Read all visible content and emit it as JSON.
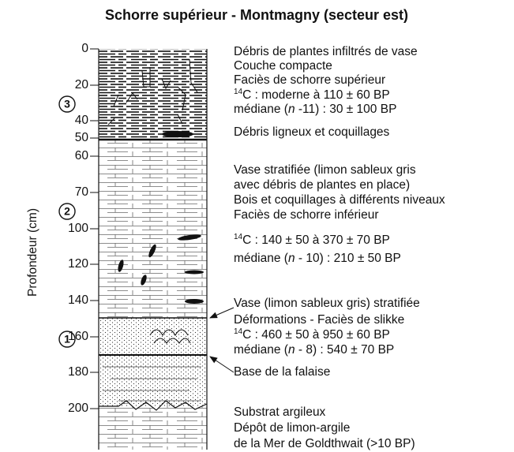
{
  "title": "Schorre supérieur - Montmagny (secteur est)",
  "y_axis_label": "Profondeur (cm)",
  "ticks": [
    0,
    20,
    40,
    50,
    60,
    70,
    100,
    120,
    140,
    160,
    180,
    200
  ],
  "units": [
    "3",
    "2",
    "1"
  ],
  "descriptions": [
    {
      "lines": [
        [
          "Débris de plantes infiltrés de vase"
        ],
        [
          "Couche compacte"
        ],
        [
          "Faciès de schorre supérieur"
        ],
        [
          {
            "sup": "14"
          },
          "C : moderne à 110 ± 60 BP"
        ],
        [
          "médiane (",
          {
            "i": "n"
          },
          " -11) : 30 ± 100 BP"
        ],
        [
          "Débris ligneux et coquillages"
        ]
      ]
    },
    {
      "lines": [
        [
          "Vase stratifiée (limon sableux gris"
        ],
        [
          "avec débris de plantes en place)"
        ],
        [
          "Bois et coquillages à différents niveaux"
        ],
        [
          "Faciès de schorre inférieur"
        ],
        [
          {
            "sup": "14"
          },
          "C : 140 ± 50 à 370 ± 70 BP"
        ],
        [
          "médiane (",
          {
            "i": "n"
          },
          " - 10) : 210 ± 50 BP"
        ]
      ]
    },
    {
      "lines": [
        [
          "Vase (limon sableux gris) stratifiée"
        ],
        [
          "Déformations - Faciès de slikke"
        ],
        [
          {
            "sup": "14"
          },
          "C : 460 ± 50 à 950 ± 60 BP"
        ],
        [
          "médiane (",
          {
            "i": "n"
          },
          " - 8) : 540 ± 70 BP"
        ],
        [
          "Base de la falaise"
        ]
      ]
    },
    {
      "lines": [
        [
          "Substrat argileux"
        ],
        [
          "Dépôt de limon-argile"
        ],
        [
          "de la Mer de Goldthwait (>10 BP)"
        ]
      ]
    }
  ]
}
